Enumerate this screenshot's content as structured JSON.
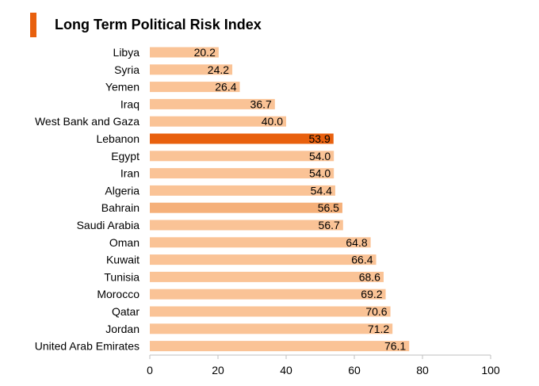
{
  "chart_data": {
    "type": "bar",
    "orientation": "horizontal",
    "title": "Long Term Political Risk Index",
    "categories": [
      "Libya",
      "Syria",
      "Yemen",
      "Iraq",
      "West Bank and Gaza",
      "Lebanon",
      "Egypt",
      "Iran",
      "Algeria",
      "Bahrain",
      "Saudi Arabia",
      "Oman",
      "Kuwait",
      "Tunisia",
      "Morocco",
      "Qatar",
      "Jordan",
      "United Arab Emirates"
    ],
    "values": [
      20.2,
      24.2,
      26.4,
      36.7,
      40.0,
      53.9,
      54.0,
      54.0,
      54.4,
      56.5,
      56.7,
      64.8,
      66.4,
      68.6,
      69.2,
      70.6,
      71.2,
      76.1
    ],
    "value_labels": [
      "20.2",
      "24.2",
      "26.4",
      "36.7",
      "40.0",
      "53.9",
      "54.0",
      "54.0",
      "54.4",
      "56.5",
      "56.7",
      "64.8",
      "66.4",
      "68.6",
      "69.2",
      "70.6",
      "71.2",
      "76.1"
    ],
    "xlim": [
      0,
      100
    ],
    "xticks": [
      0,
      20,
      40,
      60,
      80,
      100
    ],
    "xtick_labels": [
      "0",
      "20",
      "40",
      "60",
      "80",
      "100"
    ],
    "xlabel": "",
    "ylabel": "",
    "grid": false,
    "highlight": {
      "Lebanon": "#e8600e",
      "Bahrain": "#f5b07a"
    },
    "colors": {
      "bar": "#fac396",
      "accent": "#e8600e",
      "axis": "#bfbfbf"
    }
  }
}
